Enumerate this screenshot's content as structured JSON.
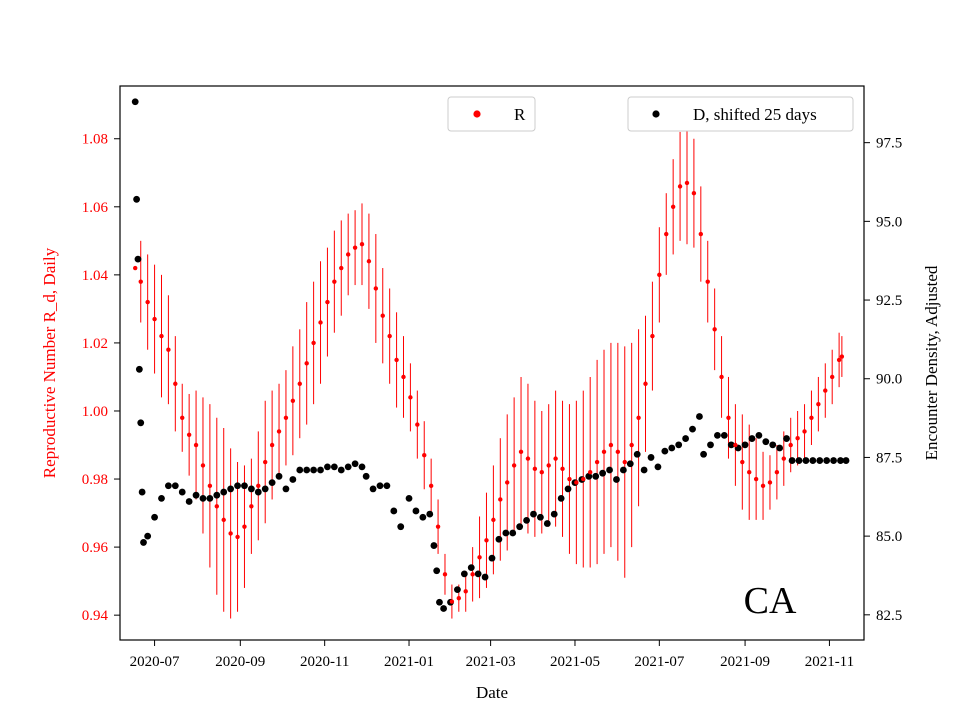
{
  "chart_data": {
    "type": "scatter",
    "title": "",
    "xlabel": "Date",
    "ylabel_left": "Reproductive Number R_d, Daily",
    "ylabel_right": "Encounter Density, Adjusted",
    "annotation": "CA",
    "x_range": [
      "2020-06-06",
      "2021-11-26"
    ],
    "ylim_left": [
      0.9327,
      1.0955
    ],
    "ylim_right": [
      81.7,
      99.3
    ],
    "x_ticks": [
      "2020-07",
      "2020-09",
      "2020-11",
      "2021-01",
      "2021-03",
      "2021-05",
      "2021-07",
      "2021-09",
      "2021-11"
    ],
    "y_ticks_left": [
      "0.94",
      "0.96",
      "0.98",
      "1.00",
      "1.02",
      "1.04",
      "1.06",
      "1.08"
    ],
    "y_ticks_right": [
      "82.5",
      "85.0",
      "87.5",
      "90.0",
      "92.5",
      "95.0",
      "97.5"
    ],
    "legend": [
      {
        "label": "R",
        "color": "#ff0000",
        "position": "upper-center"
      },
      {
        "label": "D, shifted 25 days",
        "color": "#000000",
        "position": "upper-right"
      }
    ],
    "colors": {
      "R": "#ff0000",
      "D": "#000000",
      "left_axis_text": "#ff0000"
    },
    "series": [
      {
        "name": "R",
        "axis": "left",
        "with_error_bars": true,
        "points": [
          [
            "2020-06-17",
            1.042,
            0.0
          ],
          [
            "2020-06-21",
            1.038,
            0.012
          ],
          [
            "2020-06-26",
            1.032,
            0.014
          ],
          [
            "2020-07-01",
            1.027,
            0.016
          ],
          [
            "2020-07-06",
            1.022,
            0.018
          ],
          [
            "2020-07-11",
            1.018,
            0.016
          ],
          [
            "2020-07-16",
            1.008,
            0.014
          ],
          [
            "2020-07-21",
            0.998,
            0.01
          ],
          [
            "2020-07-26",
            0.993,
            0.012
          ],
          [
            "2020-07-31",
            0.99,
            0.016
          ],
          [
            "2020-08-05",
            0.984,
            0.02
          ],
          [
            "2020-08-10",
            0.978,
            0.024
          ],
          [
            "2020-08-15",
            0.972,
            0.026
          ],
          [
            "2020-08-20",
            0.968,
            0.027
          ],
          [
            "2020-08-25",
            0.964,
            0.025
          ],
          [
            "2020-08-30",
            0.963,
            0.022
          ],
          [
            "2020-09-04",
            0.966,
            0.018
          ],
          [
            "2020-09-09",
            0.972,
            0.014
          ],
          [
            "2020-09-14",
            0.978,
            0.016
          ],
          [
            "2020-09-19",
            0.985,
            0.018
          ],
          [
            "2020-09-24",
            0.99,
            0.016
          ],
          [
            "2020-09-29",
            0.994,
            0.014
          ],
          [
            "2020-10-04",
            0.998,
            0.014
          ],
          [
            "2020-10-09",
            1.003,
            0.016
          ],
          [
            "2020-10-14",
            1.008,
            0.016
          ],
          [
            "2020-10-19",
            1.014,
            0.018
          ],
          [
            "2020-10-24",
            1.02,
            0.018
          ],
          [
            "2020-10-29",
            1.026,
            0.018
          ],
          [
            "2020-11-03",
            1.032,
            0.016
          ],
          [
            "2020-11-08",
            1.038,
            0.015
          ],
          [
            "2020-11-13",
            1.042,
            0.014
          ],
          [
            "2020-11-18",
            1.046,
            0.012
          ],
          [
            "2020-11-23",
            1.048,
            0.011
          ],
          [
            "2020-11-28",
            1.049,
            0.012
          ],
          [
            "2020-12-03",
            1.044,
            0.014
          ],
          [
            "2020-12-08",
            1.036,
            0.016
          ],
          [
            "2020-12-13",
            1.028,
            0.014
          ],
          [
            "2020-12-18",
            1.022,
            0.014
          ],
          [
            "2020-12-23",
            1.015,
            0.014
          ],
          [
            "2020-12-28",
            1.01,
            0.012
          ],
          [
            "2021-01-02",
            1.004,
            0.01
          ],
          [
            "2021-01-07",
            0.996,
            0.01
          ],
          [
            "2021-01-12",
            0.987,
            0.01
          ],
          [
            "2021-01-17",
            0.978,
            0.008
          ],
          [
            "2021-01-22",
            0.966,
            0.008
          ],
          [
            "2021-01-27",
            0.952,
            0.006
          ],
          [
            "2021-02-01",
            0.944,
            0.005
          ],
          [
            "2021-02-06",
            0.945,
            0.004
          ],
          [
            "2021-02-11",
            0.947,
            0.006
          ],
          [
            "2021-02-16",
            0.952,
            0.008
          ],
          [
            "2021-02-21",
            0.957,
            0.012
          ],
          [
            "2021-02-26",
            0.962,
            0.014
          ],
          [
            "2021-03-03",
            0.968,
            0.016
          ],
          [
            "2021-03-08",
            0.974,
            0.018
          ],
          [
            "2021-03-13",
            0.979,
            0.02
          ],
          [
            "2021-03-18",
            0.984,
            0.02
          ],
          [
            "2021-03-23",
            0.988,
            0.022
          ],
          [
            "2021-03-28",
            0.986,
            0.022
          ],
          [
            "2021-04-02",
            0.983,
            0.02
          ],
          [
            "2021-04-07",
            0.982,
            0.018
          ],
          [
            "2021-04-12",
            0.984,
            0.018
          ],
          [
            "2021-04-17",
            0.986,
            0.02
          ],
          [
            "2021-04-22",
            0.983,
            0.02
          ],
          [
            "2021-04-27",
            0.98,
            0.022
          ],
          [
            "2021-05-02",
            0.979,
            0.024
          ],
          [
            "2021-05-07",
            0.98,
            0.026
          ],
          [
            "2021-05-12",
            0.982,
            0.028
          ],
          [
            "2021-05-17",
            0.985,
            0.03
          ],
          [
            "2021-05-22",
            0.988,
            0.03
          ],
          [
            "2021-05-27",
            0.99,
            0.03
          ],
          [
            "2021-06-01",
            0.988,
            0.032
          ],
          [
            "2021-06-06",
            0.985,
            0.034
          ],
          [
            "2021-06-11",
            0.99,
            0.03
          ],
          [
            "2021-06-16",
            0.998,
            0.026
          ],
          [
            "2021-06-21",
            1.008,
            0.02
          ],
          [
            "2021-06-26",
            1.022,
            0.016
          ],
          [
            "2021-07-01",
            1.04,
            0.014
          ],
          [
            "2021-07-06",
            1.052,
            0.012
          ],
          [
            "2021-07-11",
            1.06,
            0.014
          ],
          [
            "2021-07-16",
            1.066,
            0.016
          ],
          [
            "2021-07-21",
            1.067,
            0.018
          ],
          [
            "2021-07-26",
            1.064,
            0.016
          ],
          [
            "2021-07-31",
            1.052,
            0.014
          ],
          [
            "2021-08-05",
            1.038,
            0.012
          ],
          [
            "2021-08-10",
            1.024,
            0.012
          ],
          [
            "2021-08-15",
            1.01,
            0.012
          ],
          [
            "2021-08-20",
            0.998,
            0.012
          ],
          [
            "2021-08-25",
            0.99,
            0.012
          ],
          [
            "2021-08-30",
            0.985,
            0.014
          ],
          [
            "2021-09-04",
            0.982,
            0.014
          ],
          [
            "2021-09-09",
            0.98,
            0.012
          ],
          [
            "2021-09-14",
            0.978,
            0.01
          ],
          [
            "2021-09-19",
            0.979,
            0.008
          ],
          [
            "2021-09-24",
            0.982,
            0.008
          ],
          [
            "2021-09-29",
            0.986,
            0.008
          ],
          [
            "2021-10-04",
            0.99,
            0.008
          ],
          [
            "2021-10-09",
            0.992,
            0.008
          ],
          [
            "2021-10-14",
            0.994,
            0.008
          ],
          [
            "2021-10-19",
            0.998,
            0.008
          ],
          [
            "2021-10-24",
            1.002,
            0.008
          ],
          [
            "2021-10-29",
            1.006,
            0.008
          ],
          [
            "2021-11-03",
            1.01,
            0.008
          ],
          [
            "2021-11-08",
            1.015,
            0.008
          ],
          [
            "2021-11-10",
            1.016,
            0.006
          ]
        ]
      },
      {
        "name": "D, shifted 25 days",
        "axis": "right",
        "points": [
          [
            "2020-06-17",
            98.8
          ],
          [
            "2020-06-18",
            95.7
          ],
          [
            "2020-06-19",
            93.8
          ],
          [
            "2020-06-20",
            90.3
          ],
          [
            "2020-06-21",
            88.6
          ],
          [
            "2020-06-22",
            86.4
          ],
          [
            "2020-06-23",
            84.8
          ],
          [
            "2020-06-26",
            85.0
          ],
          [
            "2020-07-01",
            85.6
          ],
          [
            "2020-07-06",
            86.2
          ],
          [
            "2020-07-11",
            86.6
          ],
          [
            "2020-07-16",
            86.6
          ],
          [
            "2020-07-21",
            86.4
          ],
          [
            "2020-07-26",
            86.1
          ],
          [
            "2020-07-31",
            86.3
          ],
          [
            "2020-08-05",
            86.2
          ],
          [
            "2020-08-10",
            86.2
          ],
          [
            "2020-08-15",
            86.3
          ],
          [
            "2020-08-20",
            86.4
          ],
          [
            "2020-08-25",
            86.5
          ],
          [
            "2020-08-30",
            86.6
          ],
          [
            "2020-09-04",
            86.6
          ],
          [
            "2020-09-09",
            86.5
          ],
          [
            "2020-09-14",
            86.4
          ],
          [
            "2020-09-19",
            86.5
          ],
          [
            "2020-09-24",
            86.7
          ],
          [
            "2020-09-29",
            86.9
          ],
          [
            "2020-10-04",
            86.5
          ],
          [
            "2020-10-09",
            86.8
          ],
          [
            "2020-10-14",
            87.1
          ],
          [
            "2020-10-19",
            87.1
          ],
          [
            "2020-10-24",
            87.1
          ],
          [
            "2020-10-29",
            87.1
          ],
          [
            "2020-11-03",
            87.2
          ],
          [
            "2020-11-08",
            87.2
          ],
          [
            "2020-11-13",
            87.1
          ],
          [
            "2020-11-18",
            87.2
          ],
          [
            "2020-11-23",
            87.3
          ],
          [
            "2020-11-28",
            87.2
          ],
          [
            "2020-12-01",
            86.9
          ],
          [
            "2020-12-06",
            86.5
          ],
          [
            "2020-12-11",
            86.6
          ],
          [
            "2020-12-16",
            86.6
          ],
          [
            "2020-12-21",
            85.8
          ],
          [
            "2020-12-26",
            85.3
          ],
          [
            "2021-01-01",
            86.2
          ],
          [
            "2021-01-06",
            85.8
          ],
          [
            "2021-01-11",
            85.6
          ],
          [
            "2021-01-16",
            85.7
          ],
          [
            "2021-01-19",
            84.7
          ],
          [
            "2021-01-21",
            83.9
          ],
          [
            "2021-01-23",
            82.9
          ],
          [
            "2021-01-26",
            82.7
          ],
          [
            "2021-01-31",
            82.9
          ],
          [
            "2021-02-05",
            83.3
          ],
          [
            "2021-02-10",
            83.8
          ],
          [
            "2021-02-15",
            84.0
          ],
          [
            "2021-02-20",
            83.8
          ],
          [
            "2021-02-25",
            83.7
          ],
          [
            "2021-03-02",
            84.3
          ],
          [
            "2021-03-07",
            84.9
          ],
          [
            "2021-03-12",
            85.1
          ],
          [
            "2021-03-17",
            85.1
          ],
          [
            "2021-03-22",
            85.3
          ],
          [
            "2021-03-27",
            85.5
          ],
          [
            "2021-04-01",
            85.7
          ],
          [
            "2021-04-06",
            85.6
          ],
          [
            "2021-04-11",
            85.4
          ],
          [
            "2021-04-16",
            85.7
          ],
          [
            "2021-04-21",
            86.2
          ],
          [
            "2021-04-26",
            86.5
          ],
          [
            "2021-05-01",
            86.7
          ],
          [
            "2021-05-06",
            86.8
          ],
          [
            "2021-05-11",
            86.9
          ],
          [
            "2021-05-16",
            86.9
          ],
          [
            "2021-05-21",
            87.0
          ],
          [
            "2021-05-26",
            87.1
          ],
          [
            "2021-05-31",
            86.8
          ],
          [
            "2021-06-05",
            87.1
          ],
          [
            "2021-06-10",
            87.3
          ],
          [
            "2021-06-15",
            87.6
          ],
          [
            "2021-06-20",
            87.1
          ],
          [
            "2021-06-25",
            87.5
          ],
          [
            "2021-06-30",
            87.2
          ],
          [
            "2021-07-05",
            87.7
          ],
          [
            "2021-07-10",
            87.8
          ],
          [
            "2021-07-15",
            87.9
          ],
          [
            "2021-07-20",
            88.1
          ],
          [
            "2021-07-25",
            88.4
          ],
          [
            "2021-07-30",
            88.8
          ],
          [
            "2021-08-02",
            87.6
          ],
          [
            "2021-08-07",
            87.9
          ],
          [
            "2021-08-12",
            88.2
          ],
          [
            "2021-08-17",
            88.2
          ],
          [
            "2021-08-22",
            87.9
          ],
          [
            "2021-08-27",
            87.8
          ],
          [
            "2021-09-01",
            87.9
          ],
          [
            "2021-09-06",
            88.1
          ],
          [
            "2021-09-11",
            88.2
          ],
          [
            "2021-09-16",
            88.0
          ],
          [
            "2021-09-21",
            87.9
          ],
          [
            "2021-09-26",
            87.8
          ],
          [
            "2021-10-01",
            88.1
          ],
          [
            "2021-10-05",
            87.4
          ],
          [
            "2021-10-10",
            87.4
          ],
          [
            "2021-10-15",
            87.4
          ],
          [
            "2021-10-20",
            87.4
          ],
          [
            "2021-10-25",
            87.4
          ],
          [
            "2021-10-30",
            87.4
          ],
          [
            "2021-11-04",
            87.4
          ],
          [
            "2021-11-09",
            87.4
          ],
          [
            "2021-11-13",
            87.4
          ]
        ]
      }
    ]
  }
}
